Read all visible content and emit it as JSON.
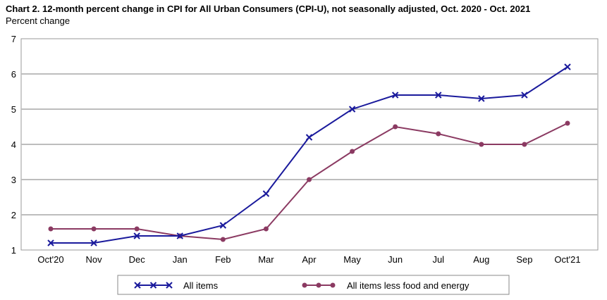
{
  "chart_data": {
    "type": "line",
    "title": "Chart 2. 12-month percent change in CPI for All Urban Consumers (CPI-U), not seasonally adjusted, Oct. 2020 - Oct. 2021",
    "xlabel": "",
    "ylabel": "Percent change",
    "categories": [
      "Oct'20",
      "Nov",
      "Dec",
      "Jan",
      "Feb",
      "Mar",
      "Apr",
      "May",
      "Jun",
      "Jul",
      "Aug",
      "Sep",
      "Oct'21"
    ],
    "ylim": [
      1,
      7
    ],
    "yticks": [
      "1",
      "2",
      "3",
      "4",
      "5",
      "6",
      "7"
    ],
    "grid": true,
    "legend_position": "bottom",
    "series": [
      {
        "name": "All items",
        "color": "#1a1a9c",
        "marker": "x",
        "values": [
          1.2,
          1.2,
          1.4,
          1.4,
          1.7,
          2.6,
          4.2,
          5.0,
          5.4,
          5.4,
          5.3,
          5.4,
          6.2
        ]
      },
      {
        "name": "All items less food and energy",
        "color": "#8b3a62",
        "marker": "circle",
        "values": [
          1.6,
          1.6,
          1.6,
          1.4,
          1.3,
          1.6,
          3.0,
          3.8,
          4.5,
          4.3,
          4.0,
          4.0,
          4.6
        ]
      }
    ]
  }
}
